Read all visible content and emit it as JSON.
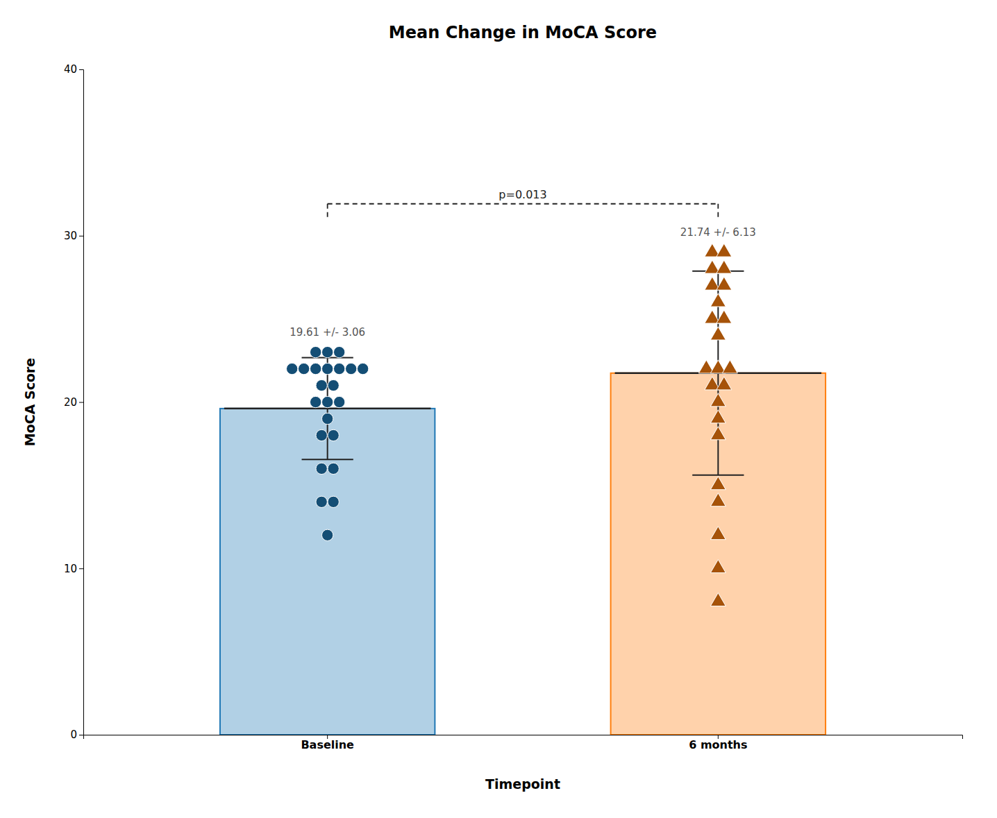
{
  "chart_data": {
    "type": "bar",
    "title": "Mean Change in MoCA Score",
    "x_label": "Timepoint",
    "y_label": "MoCA Score",
    "categories": [
      "Baseline",
      "6 months"
    ],
    "values": [
      19.61,
      21.74
    ],
    "means": [
      19.61,
      21.74
    ],
    "errors": [
      3.06,
      6.13
    ],
    "value_labels": [
      "19.61 +/- 3.06",
      "21.74 +/- 6.13"
    ],
    "data_labels": true,
    "dots": [
      {
        "marker": "circle",
        "values": [
          23,
          23,
          23,
          22,
          22,
          22,
          22,
          22,
          22,
          22,
          21,
          21,
          20,
          20,
          20,
          19,
          18,
          18,
          16,
          16,
          14,
          14,
          12
        ]
      },
      {
        "marker": "triangle-up",
        "values": [
          29,
          28,
          28,
          29,
          27,
          27,
          26,
          25,
          25,
          24,
          22,
          22,
          22,
          21,
          21,
          20,
          19,
          18,
          15,
          14,
          12,
          10,
          8
        ]
      }
    ],
    "annotations": [
      "p=0.013"
    ],
    "ylim": [
      0,
      40
    ],
    "yticks": [
      0,
      10,
      20,
      30,
      40
    ]
  }
}
